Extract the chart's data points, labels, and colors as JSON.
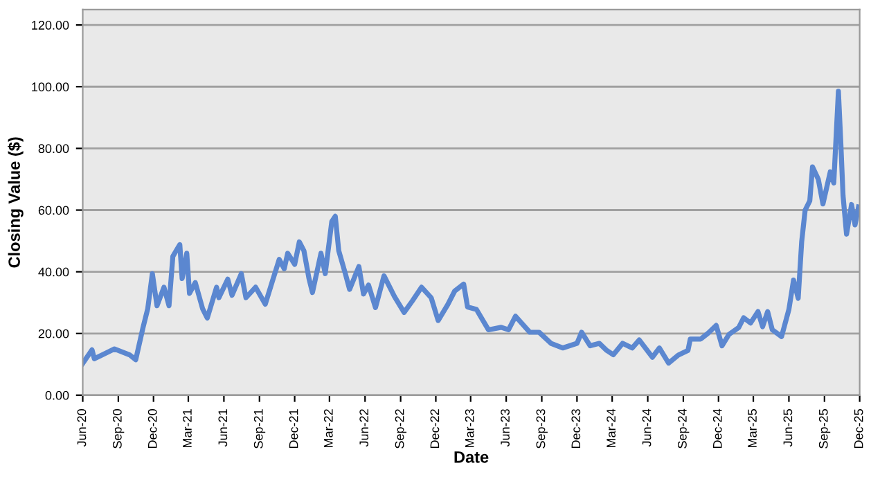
{
  "chart_data": {
    "type": "line",
    "xlabel": "Date",
    "ylabel": "Closing Value ($)",
    "x": [
      "2020-06-01",
      "2020-06-25",
      "2020-07-01",
      "2020-08-22",
      "2020-10-01",
      "2020-10-16",
      "2020-11-04",
      "2020-11-16",
      "2020-11-28",
      "2020-12-10",
      "2020-12-28",
      "2021-01-10",
      "2021-01-20",
      "2021-02-07",
      "2021-02-13",
      "2021-02-25",
      "2021-03-04",
      "2021-03-19",
      "2021-04-07",
      "2021-04-19",
      "2021-05-13",
      "2021-05-19",
      "2021-06-11",
      "2021-06-22",
      "2021-07-16",
      "2021-07-28",
      "2021-08-22",
      "2021-09-16",
      "2021-10-04",
      "2021-10-22",
      "2021-11-04",
      "2021-11-13",
      "2021-12-01",
      "2021-12-13",
      "2021-12-25",
      "2022-01-07",
      "2022-01-16",
      "2022-02-07",
      "2022-02-18",
      "2022-03-07",
      "2022-03-16",
      "2022-03-25",
      "2022-04-11",
      "2022-04-22",
      "2022-05-16",
      "2022-05-28",
      "2022-06-10",
      "2022-06-28",
      "2022-07-20",
      "2022-08-16",
      "2022-09-10",
      "2022-10-01",
      "2022-10-25",
      "2022-11-19",
      "2022-12-07",
      "2023-01-01",
      "2023-01-19",
      "2023-02-11",
      "2023-02-21",
      "2023-03-16",
      "2023-04-16",
      "2023-05-19",
      "2023-06-07",
      "2023-06-25",
      "2023-08-01",
      "2023-08-25",
      "2023-09-25",
      "2023-10-25",
      "2023-12-01",
      "2023-12-13",
      "2024-01-04",
      "2024-01-28",
      "2024-02-16",
      "2024-03-04",
      "2024-03-28",
      "2024-04-22",
      "2024-05-10",
      "2024-06-13",
      "2024-07-01",
      "2024-07-25",
      "2024-08-19",
      "2024-09-13",
      "2024-09-19",
      "2024-10-16",
      "2024-11-04",
      "2024-11-25",
      "2024-12-10",
      "2024-12-28",
      "2025-01-22",
      "2025-02-04",
      "2025-02-22",
      "2025-03-13",
      "2025-03-25",
      "2025-04-07",
      "2025-04-19",
      "2025-05-13",
      "2025-06-01",
      "2025-06-13",
      "2025-06-25",
      "2025-07-04",
      "2025-07-13",
      "2025-07-25",
      "2025-08-01",
      "2025-08-16",
      "2025-08-28",
      "2025-09-16",
      "2025-09-25",
      "2025-10-07",
      "2025-10-13",
      "2025-10-19",
      "2025-10-28",
      "2025-11-10",
      "2025-11-19",
      "2025-11-28"
    ],
    "series": [
      {
        "color": "#5b87d0",
        "values": [
          10.3,
          14.7,
          11.8,
          15,
          13,
          11.5,
          22,
          28,
          39.4,
          29,
          35,
          29,
          45,
          48.8,
          37.8,
          46,
          33,
          36.5,
          28,
          25,
          35,
          31.6,
          37.6,
          32.4,
          39.4,
          31.6,
          35,
          29.5,
          36.8,
          44,
          41,
          46,
          42.4,
          49.7,
          46.8,
          37.8,
          33.3,
          46,
          39.4,
          56.3,
          58,
          46.8,
          39.4,
          34.3,
          41.7,
          32.8,
          35.7,
          28.4,
          38.7,
          32,
          26.8,
          30.5,
          35,
          31.6,
          24.2,
          29.4,
          33.8,
          36,
          28.6,
          27.8,
          21.2,
          22,
          21.2,
          25.6,
          20.4,
          20.4,
          16.8,
          15.3,
          16.8,
          20.4,
          16,
          16.8,
          14.5,
          13.1,
          16.8,
          15.3,
          17.9,
          12.3,
          15.3,
          10.4,
          13,
          14.5,
          18.2,
          18.2,
          20.1,
          22.6,
          16,
          19.7,
          21.9,
          25.1,
          23.4,
          27.1,
          22.2,
          27.1,
          21.2,
          19,
          27.8,
          37.3,
          31.4,
          49.7,
          60,
          63,
          74,
          70,
          62,
          72.4,
          68.8,
          98.5,
          82.4,
          64.7,
          52.2,
          61.8,
          55.2,
          61
        ]
      }
    ],
    "xlim": [
      "2020-06-01",
      "2025-12-01"
    ],
    "xticks": [
      {
        "value": "2020-06-01",
        "label": "Jun-20"
      },
      {
        "value": "2020-09-01",
        "label": "Sep-20"
      },
      {
        "value": "2020-12-01",
        "label": "Dec-20"
      },
      {
        "value": "2021-03-01",
        "label": "Mar-21"
      },
      {
        "value": "2021-06-01",
        "label": "Jun-21"
      },
      {
        "value": "2021-09-01",
        "label": "Sep-21"
      },
      {
        "value": "2021-12-01",
        "label": "Dec-21"
      },
      {
        "value": "2022-03-01",
        "label": "Mar-22"
      },
      {
        "value": "2022-06-01",
        "label": "Jun-22"
      },
      {
        "value": "2022-09-01",
        "label": "Sep-22"
      },
      {
        "value": "2022-12-01",
        "label": "Dec-22"
      },
      {
        "value": "2023-03-01",
        "label": "Mar-23"
      },
      {
        "value": "2023-06-01",
        "label": "Jun-23"
      },
      {
        "value": "2023-09-01",
        "label": "Sep-23"
      },
      {
        "value": "2023-12-01",
        "label": "Dec-23"
      },
      {
        "value": "2024-03-01",
        "label": "Mar-24"
      },
      {
        "value": "2024-06-01",
        "label": "Jun-24"
      },
      {
        "value": "2024-09-01",
        "label": "Sep-24"
      },
      {
        "value": "2024-12-01",
        "label": "Dec-24"
      },
      {
        "value": "2025-03-01",
        "label": "Mar-25"
      },
      {
        "value": "2025-06-01",
        "label": "Jun-25"
      },
      {
        "value": "2025-09-01",
        "label": "Sep-25"
      },
      {
        "value": "2025-12-01",
        "label": "Dec-25"
      }
    ],
    "ylim": [
      0,
      125
    ],
    "yticks": [
      {
        "value": 0,
        "label": "0.00"
      },
      {
        "value": 20,
        "label": "20.00"
      },
      {
        "value": 40,
        "label": "40.00"
      },
      {
        "value": 60,
        "label": "60.00"
      },
      {
        "value": 80,
        "label": "80.00"
      },
      {
        "value": 100,
        "label": "100.00"
      },
      {
        "value": 120,
        "label": "120.00"
      }
    ],
    "grid": "y",
    "marker": "none",
    "line_style": "solid"
  }
}
